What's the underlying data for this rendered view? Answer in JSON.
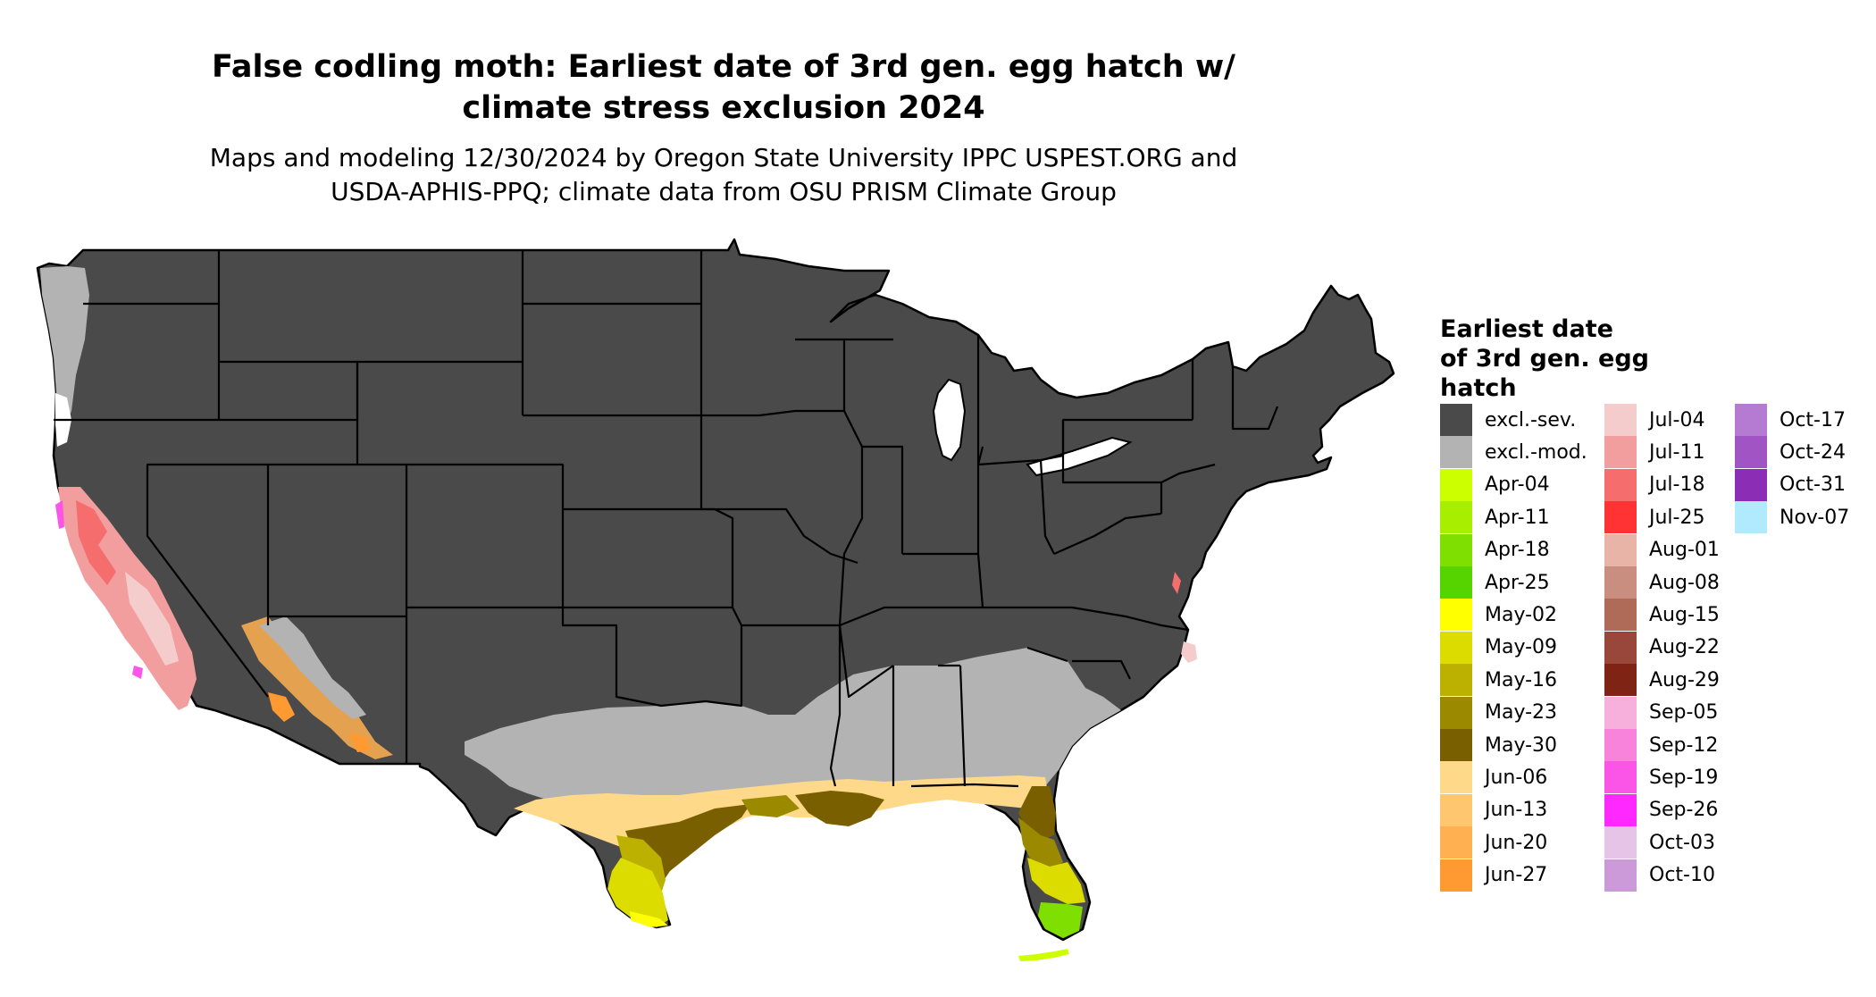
{
  "title_line1": "False codling moth: Earliest date of 3rd gen. egg hatch w/",
  "title_line2": "climate stress exclusion 2024",
  "subtitle_line1": "Maps and modeling 12/30/2024 by Oregon State University IPPC USPEST.ORG and",
  "subtitle_line2": "USDA-APHIS-PPQ; climate data from OSU PRISM Climate Group",
  "legend": {
    "title_lines": [
      "Earliest date",
      "of 3rd gen. egg",
      "hatch"
    ],
    "items": [
      {
        "label": "excl.-sev.",
        "color": "#4a4a4a"
      },
      {
        "label": "excl.-mod.",
        "color": "#b3b3b3"
      },
      {
        "label": "Apr-04",
        "color": "#ccff00"
      },
      {
        "label": "Apr-11",
        "color": "#a8ee00"
      },
      {
        "label": "Apr-18",
        "color": "#7fe000"
      },
      {
        "label": "Apr-25",
        "color": "#55d400"
      },
      {
        "label": "May-02",
        "color": "#ffff00"
      },
      {
        "label": "May-09",
        "color": "#dcdc00"
      },
      {
        "label": "May-16",
        "color": "#bcb100"
      },
      {
        "label": "May-23",
        "color": "#9b8900"
      },
      {
        "label": "May-30",
        "color": "#7a5f00"
      },
      {
        "label": "Jun-06",
        "color": "#ffd98a"
      },
      {
        "label": "Jun-13",
        "color": "#ffc670"
      },
      {
        "label": "Jun-20",
        "color": "#ffb050"
      },
      {
        "label": "Jun-27",
        "color": "#ff9a33"
      },
      {
        "label": "Jul-04",
        "color": "#f5cccc"
      },
      {
        "label": "Jul-11",
        "color": "#f29e9e"
      },
      {
        "label": "Jul-18",
        "color": "#f56d6d"
      },
      {
        "label": "Jul-25",
        "color": "#ff3333"
      },
      {
        "label": "Aug-01",
        "color": "#e8b4a8"
      },
      {
        "label": "Aug-08",
        "color": "#c98e7f"
      },
      {
        "label": "Aug-15",
        "color": "#b06a58"
      },
      {
        "label": "Aug-22",
        "color": "#98473a"
      },
      {
        "label": "Aug-29",
        "color": "#7f2414"
      },
      {
        "label": "Sep-05",
        "color": "#f7b0dc"
      },
      {
        "label": "Sep-12",
        "color": "#f783da"
      },
      {
        "label": "Sep-19",
        "color": "#fb55e8"
      },
      {
        "label": "Sep-26",
        "color": "#ff28ff"
      },
      {
        "label": "Oct-03",
        "color": "#e6c4e8"
      },
      {
        "label": "Oct-10",
        "color": "#cc99d9"
      },
      {
        "label": "Oct-17",
        "color": "#b57ad1"
      },
      {
        "label": "Oct-24",
        "color": "#a155c4"
      },
      {
        "label": "Oct-31",
        "color": "#8c2db5"
      },
      {
        "label": "Nov-07",
        "color": "#b0eafc"
      }
    ]
  }
}
